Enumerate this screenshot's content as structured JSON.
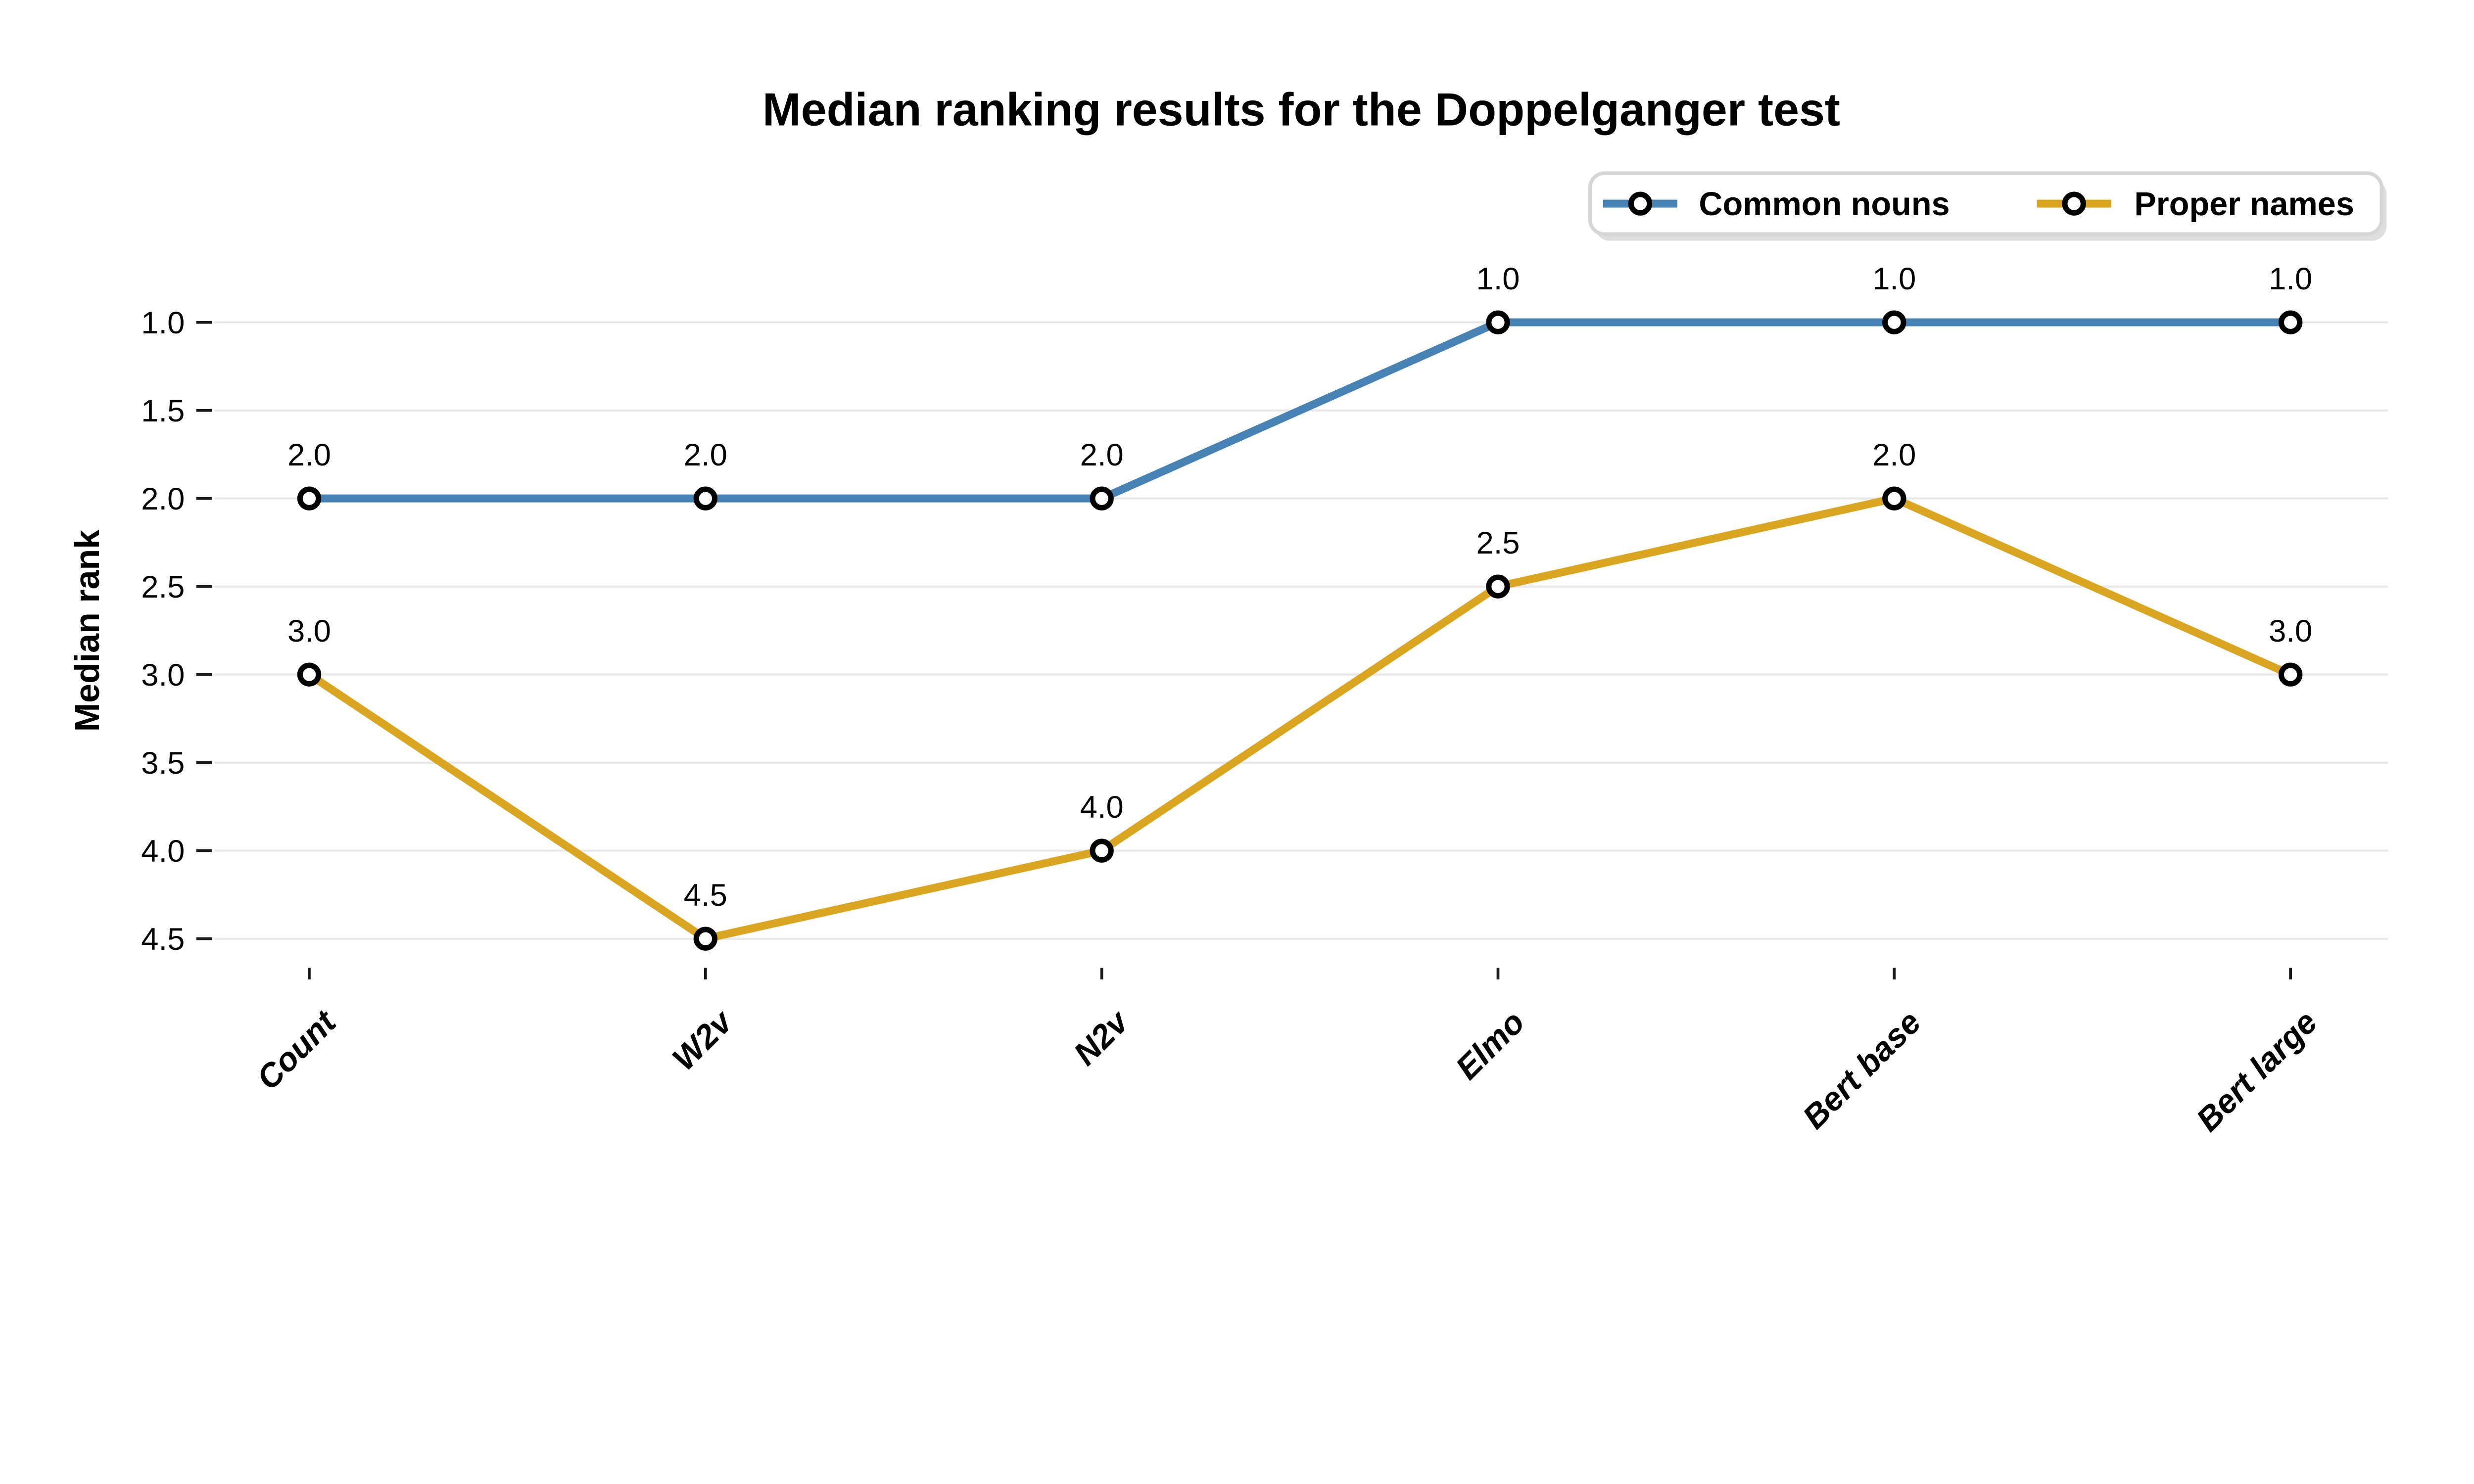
{
  "figure": {
    "title": "Median ranking results for the Doppelganger test",
    "ylabel": "Median rank"
  },
  "legend": {
    "position": "top-right",
    "items": [
      {
        "label": "Common nouns",
        "color": "#4682B4",
        "marker": "open-circle"
      },
      {
        "label": "Proper names",
        "color": "#DAA521",
        "marker": "open-circle"
      }
    ]
  },
  "chart_data": {
    "type": "line",
    "title": "Median ranking results for the Doppelganger test",
    "xlabel": "",
    "ylabel": "Median rank",
    "categories": [
      "Count",
      "W2v",
      "N2v",
      "Elmo",
      "Bert base",
      "Bert large"
    ],
    "series": [
      {
        "name": "Common nouns",
        "color": "#4682B4",
        "values": [
          2.0,
          2.0,
          2.0,
          1.0,
          1.0,
          1.0
        ],
        "value_labels": [
          "2.0",
          "2.0",
          "2.0",
          "1.0",
          "1.0",
          "1.0"
        ]
      },
      {
        "name": "Proper names",
        "color": "#DAA521",
        "values": [
          3.0,
          4.5,
          4.0,
          2.5,
          2.0,
          3.0
        ],
        "value_labels": [
          "3.0",
          "4.5",
          "4.0",
          "2.5",
          "2.0",
          "3.0"
        ]
      }
    ],
    "y_ticks": [
      1.0,
      1.5,
      2.0,
      2.5,
      3.0,
      3.5,
      4.0,
      4.5
    ],
    "ylim": [
      1.0,
      4.5
    ],
    "y_axis_inverted": true,
    "grid": "horizontal",
    "legend_position": "top-right",
    "marker": "open-circle",
    "data_labels_position": "above-point",
    "x_tick_label_rotation_deg": 45,
    "colors": {
      "grid": "#e8e8e8",
      "tick": "#1a1a1a",
      "text": "#000000",
      "legend_border": "#d6d6d6",
      "legend_shadow": "#dedede",
      "background": "#ffffff"
    }
  }
}
